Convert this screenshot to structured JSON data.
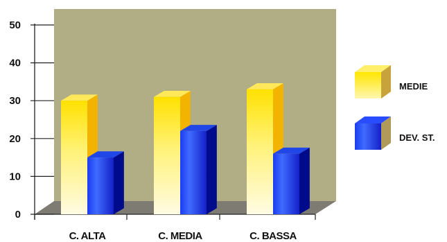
{
  "chart_data": {
    "type": "bar",
    "title": "",
    "xlabel": "",
    "ylabel": "",
    "ylim": [
      0,
      50
    ],
    "yticks": [
      0,
      10,
      20,
      30,
      40,
      50
    ],
    "categories": [
      "C. ALTA",
      "C. MEDIA",
      "C. BASSA"
    ],
    "series": [
      {
        "name": "MEDIE",
        "values": [
          30,
          31,
          33
        ]
      },
      {
        "name": "DEV. ST.",
        "values": [
          15,
          22,
          16
        ]
      }
    ],
    "legend_position": "right",
    "grid": false,
    "colors": {
      "wall": "#b1ad84",
      "floor": "#7e7c72",
      "medie_light": "#fffbe0",
      "medie_dark": "#ffe400",
      "medie_side": "#f2b400",
      "dev_light": "#3a6cff",
      "dev_dark": "#0b22c8",
      "dev_side": "#000b8c"
    }
  }
}
